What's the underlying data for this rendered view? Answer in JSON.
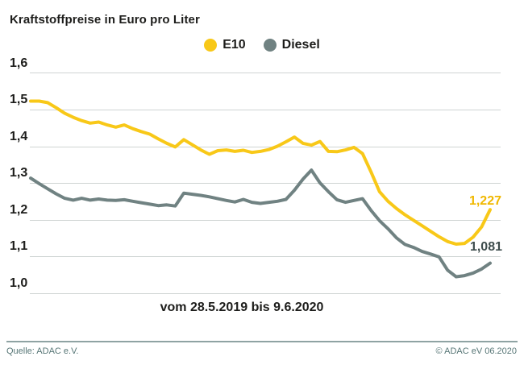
{
  "title": "Kraftstoffpreise in Euro pro Liter",
  "footer": {
    "source": "Quelle: ADAC e.V.",
    "copyright": "© ADAC eV 06.2020"
  },
  "colors": {
    "e10": "#f8c818",
    "diesel": "#708282",
    "grid": "#cfd4d3",
    "text": "#1d1d1b",
    "footer_teal": "#577676",
    "rule": "#8fa3a3",
    "e10_label": "#f0b800",
    "diesel_label": "#3e4d4d"
  },
  "chart_data": {
    "type": "line",
    "title": "Kraftstoffpreise in Euro pro Liter",
    "caption": "vom 28.5.2019 bis 9.6.2020",
    "x_start": "28.5.2019",
    "x_end": "9.6.2020",
    "x_unit": "week",
    "ylabel": "Euro pro Liter",
    "ylim": [
      1.0,
      1.6
    ],
    "yticks": [
      1.6,
      1.5,
      1.4,
      1.3,
      1.2,
      1.1,
      1.0
    ],
    "ytick_labels": [
      "1,6",
      "1,5",
      "1,4",
      "1,3",
      "1,2",
      "1,1",
      "1,0"
    ],
    "grid": "horizontal",
    "legend_position": "top-center",
    "series": [
      {
        "name": "E10",
        "color": "#f8c818",
        "end_label": "1,227",
        "end_value": 1.227,
        "values": [
          1.523,
          1.523,
          1.519,
          1.505,
          1.49,
          1.479,
          1.47,
          1.463,
          1.466,
          1.458,
          1.452,
          1.458,
          1.448,
          1.44,
          1.433,
          1.42,
          1.408,
          1.398,
          1.418,
          1.404,
          1.39,
          1.378,
          1.388,
          1.39,
          1.386,
          1.389,
          1.383,
          1.386,
          1.391,
          1.4,
          1.412,
          1.425,
          1.408,
          1.403,
          1.413,
          1.386,
          1.385,
          1.39,
          1.397,
          1.38,
          1.33,
          1.276,
          1.25,
          1.23,
          1.213,
          1.198,
          1.183,
          1.168,
          1.153,
          1.14,
          1.133,
          1.135,
          1.152,
          1.18,
          1.227
        ]
      },
      {
        "name": "Diesel",
        "color": "#708282",
        "end_label": "1,081",
        "end_value": 1.081,
        "values": [
          1.313,
          1.298,
          1.284,
          1.27,
          1.258,
          1.253,
          1.258,
          1.253,
          1.256,
          1.253,
          1.252,
          1.254,
          1.25,
          1.246,
          1.242,
          1.238,
          1.24,
          1.237,
          1.272,
          1.269,
          1.266,
          1.262,
          1.257,
          1.252,
          1.248,
          1.255,
          1.247,
          1.244,
          1.247,
          1.25,
          1.255,
          1.28,
          1.31,
          1.335,
          1.3,
          1.276,
          1.254,
          1.247,
          1.252,
          1.257,
          1.225,
          1.197,
          1.175,
          1.15,
          1.132,
          1.124,
          1.113,
          1.106,
          1.098,
          1.062,
          1.044,
          1.047,
          1.054,
          1.065,
          1.081
        ]
      }
    ]
  }
}
